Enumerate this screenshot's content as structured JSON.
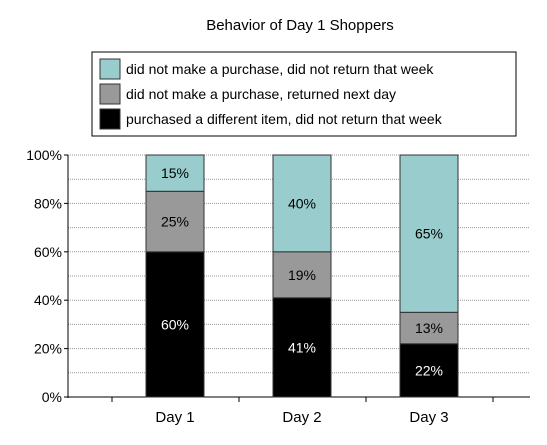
{
  "chart_data": {
    "type": "bar",
    "stacked": true,
    "percent_stacked": true,
    "title": "Behavior of Day 1 Shoppers",
    "categories": [
      "Day 1",
      "Day 2",
      "Day 3"
    ],
    "series": [
      {
        "name": "purchased a different item, did not return that week",
        "values": [
          60,
          41,
          22
        ],
        "labels": [
          "60%",
          "41%",
          "22%"
        ],
        "color": "#000000",
        "label_color": "#ffffff"
      },
      {
        "name": "did not make a purchase, returned next day",
        "values": [
          25,
          19,
          13
        ],
        "labels": [
          "25%",
          "19%",
          "13%"
        ],
        "color": "#999999",
        "label_color": "#000000"
      },
      {
        "name": "did not make a purchase, did not return that week",
        "values": [
          15,
          40,
          65
        ],
        "labels": [
          "15%",
          "40%",
          "65%"
        ],
        "color": "#99cccc",
        "label_color": "#000000"
      }
    ],
    "legend_order": [
      "did not make a purchase, did not return that week",
      "did not make a purchase, returned next day",
      "purchased a different item, did not return that week"
    ],
    "y_ticks": [
      "0%",
      "20%",
      "40%",
      "60%",
      "80%",
      "100%"
    ],
    "ylim": [
      0,
      100
    ],
    "grid": true,
    "legend_position": "top"
  }
}
